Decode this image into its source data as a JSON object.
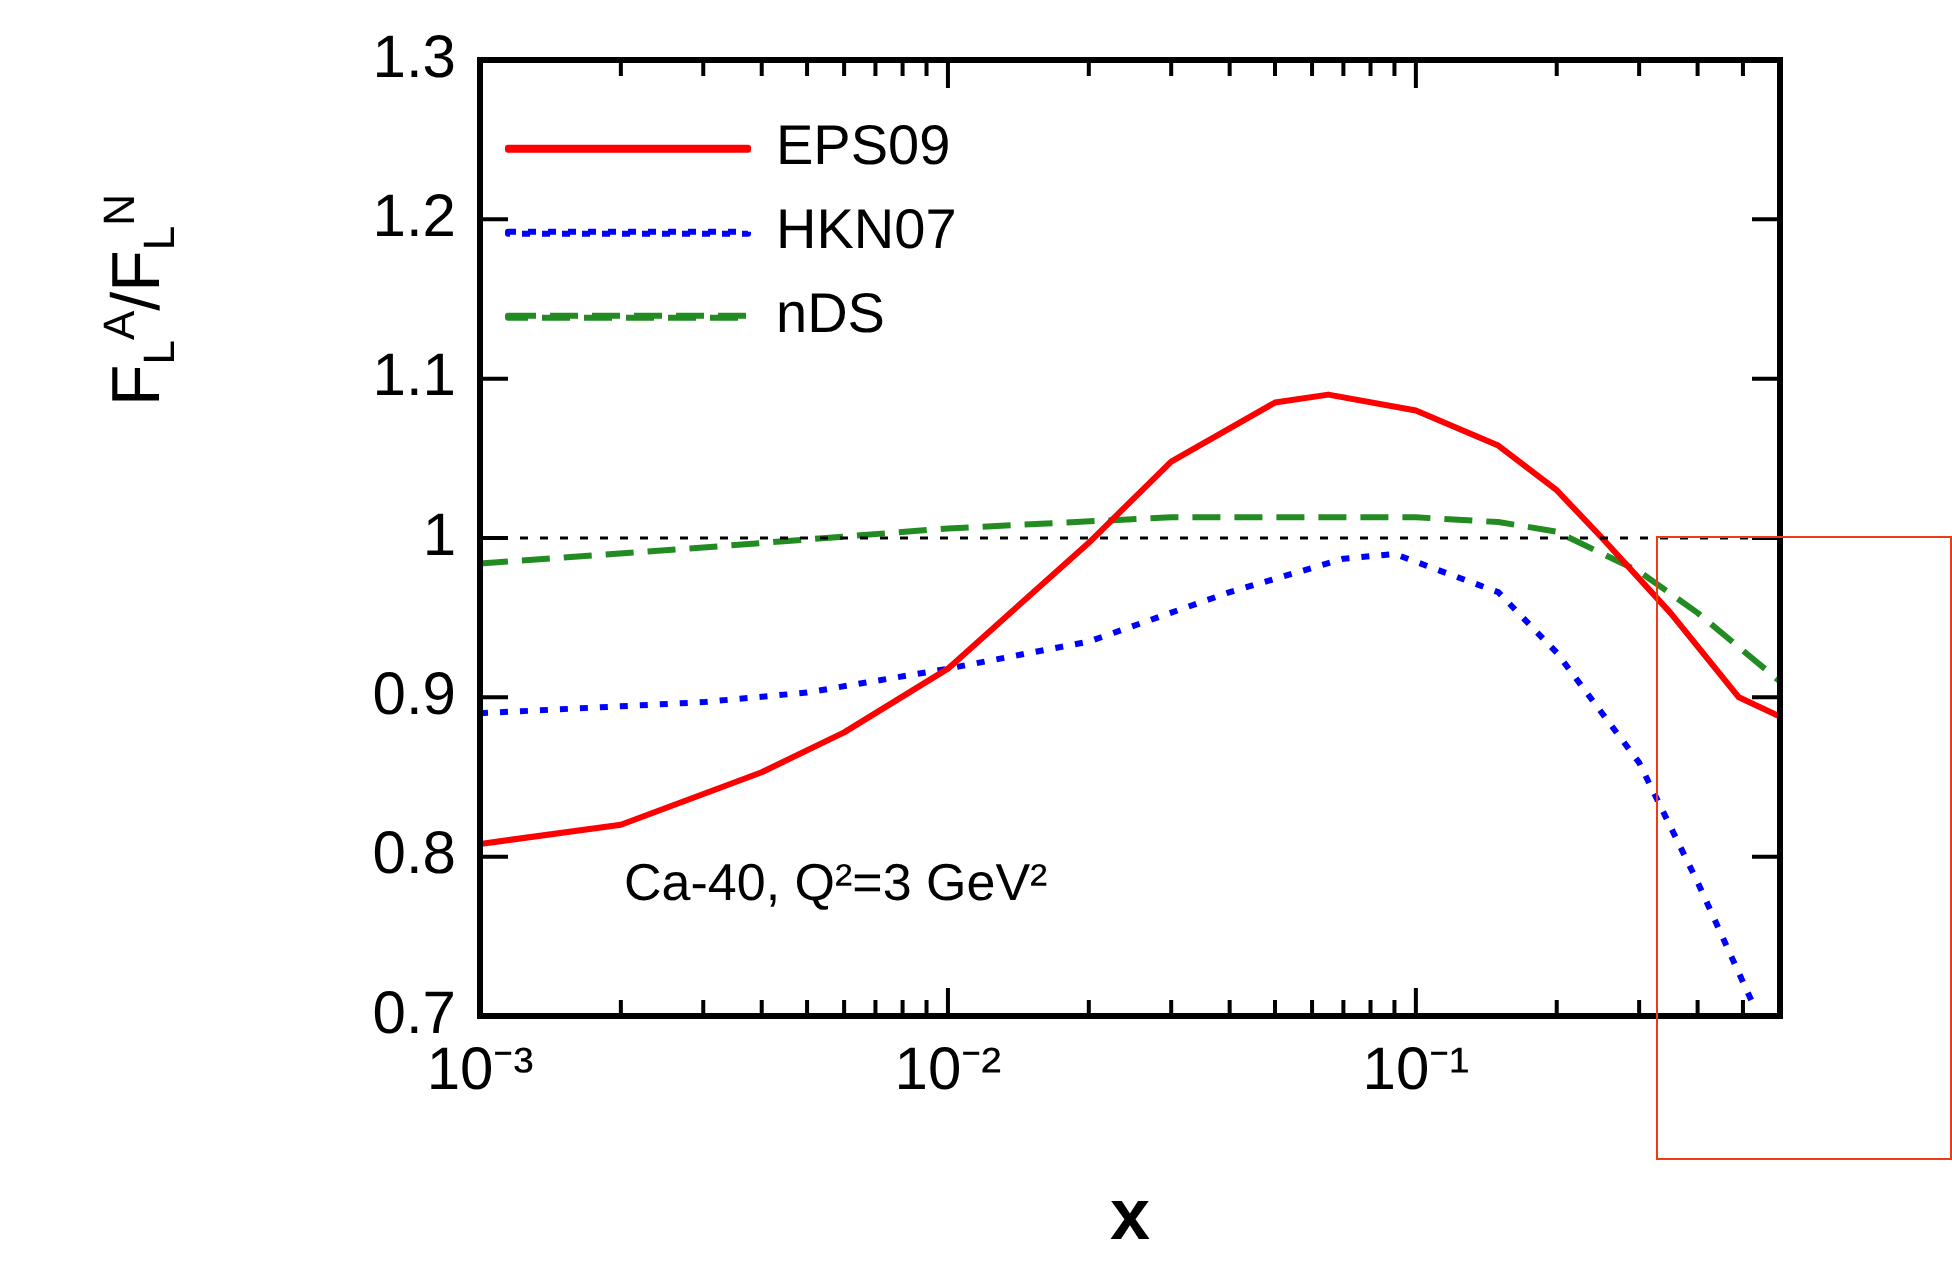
{
  "chart_data": {
    "type": "line",
    "ylabel": "F$_{L}$$^{A}$/F$_{L}$$^{N}$",
    "xlabel": "x",
    "log": "x",
    "xlim": [
      0.001,
      0.6
    ],
    "xticks": [
      {
        "value": 0.001,
        "label": "10⁻³"
      },
      {
        "value": 0.002,
        "label": null
      },
      {
        "value": 0.003,
        "label": null
      },
      {
        "value": 0.004,
        "label": null
      },
      {
        "value": 0.005,
        "label": null
      },
      {
        "value": 0.006,
        "label": null
      },
      {
        "value": 0.007,
        "label": null
      },
      {
        "value": 0.008,
        "label": null
      },
      {
        "value": 0.009,
        "label": null
      },
      {
        "value": 0.01,
        "label": "10⁻²"
      },
      {
        "value": 0.02,
        "label": null
      },
      {
        "value": 0.03,
        "label": null
      },
      {
        "value": 0.04,
        "label": null
      },
      {
        "value": 0.05,
        "label": null
      },
      {
        "value": 0.06,
        "label": null
      },
      {
        "value": 0.07,
        "label": null
      },
      {
        "value": 0.08,
        "label": null
      },
      {
        "value": 0.09,
        "label": null
      },
      {
        "value": 0.1,
        "label": "10⁻¹"
      },
      {
        "value": 0.2,
        "label": null
      },
      {
        "value": 0.3,
        "label": null
      },
      {
        "value": 0.4,
        "label": null
      },
      {
        "value": 0.5,
        "label": null
      }
    ],
    "ylim": [
      0.7,
      1.3
    ],
    "yticks": [
      0.7,
      0.8,
      0.9,
      1,
      1.1,
      1.2,
      1.3
    ],
    "grid": false,
    "legend": "top left",
    "marker": "none",
    "series": [
      {
        "name": "EPS09",
        "color": "#ff0000",
        "line_style": "solid",
        "x": [
          0.001,
          0.002,
          0.004,
          0.006,
          0.01,
          0.02,
          0.03,
          0.05,
          0.065,
          0.1,
          0.15,
          0.2,
          0.25,
          0.35,
          0.49,
          0.6
        ],
        "values": [
          0.808,
          0.82,
          0.853,
          0.878,
          0.918,
          0.997,
          1.048,
          1.085,
          1.09,
          1.08,
          1.058,
          1.03,
          1.0,
          0.953,
          0.9,
          0.888
        ]
      },
      {
        "name": "HKN07",
        "color": "#0000ff",
        "line_style": "dotted",
        "x": [
          0.001,
          0.003,
          0.005,
          0.01,
          0.02,
          0.04,
          0.07,
          0.09,
          0.15,
          0.2,
          0.3,
          0.4,
          0.53
        ],
        "values": [
          0.89,
          0.897,
          0.903,
          0.918,
          0.935,
          0.966,
          0.987,
          0.99,
          0.966,
          0.928,
          0.859,
          0.784,
          0.705
        ]
      },
      {
        "name": "nDS",
        "color": "#228b22",
        "line_style": "dashed",
        "x": [
          0.001,
          0.003,
          0.01,
          0.03,
          0.1,
          0.15,
          0.2,
          0.3,
          0.4,
          0.6
        ],
        "values": [
          0.984,
          0.994,
          1.006,
          1.013,
          1.013,
          1.01,
          1.004,
          0.979,
          0.953,
          0.91
        ]
      }
    ],
    "ref_lines": [
      {
        "axis": "y",
        "value": 1,
        "color": "#000000",
        "line_style": "dotted"
      }
    ],
    "annotations": [
      "Ca-40, Q²=3 GeV²"
    ]
  }
}
